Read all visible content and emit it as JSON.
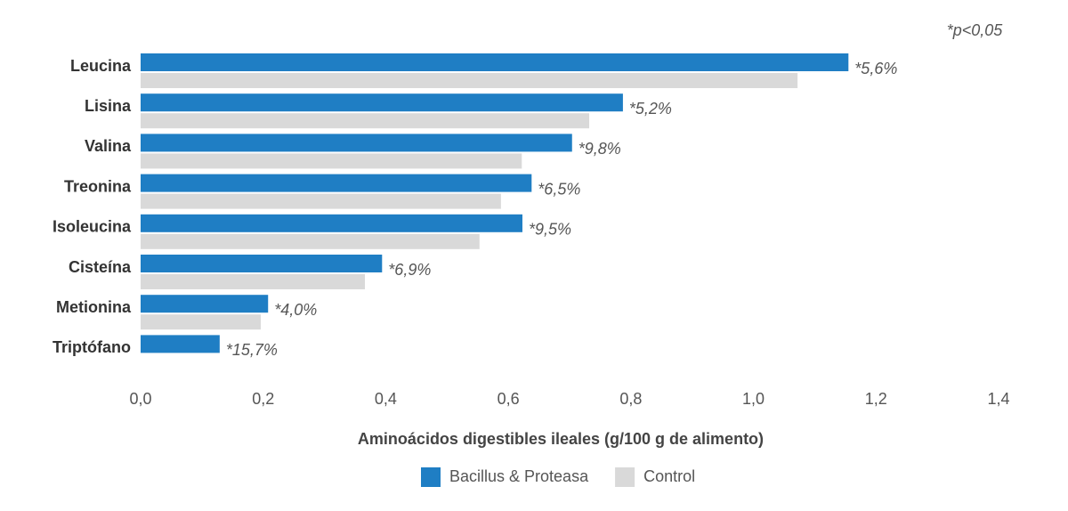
{
  "chart_data": {
    "type": "hbar",
    "note": "*p<0,05",
    "x_label": "Aminoácidos digestibles ileales (g/100 g de alimento)",
    "categories": [
      "Leucina",
      "Lisina",
      "Valina",
      "Treonina",
      "Isoleucina",
      "Cisteína",
      "Metionina",
      "Triptófano"
    ],
    "series": [
      {
        "name": "Bacillus & Proteasa",
        "color": "#1f7ec4",
        "values": [
          1.155,
          0.787,
          0.704,
          0.638,
          0.623,
          0.394,
          0.208,
          0.129
        ]
      },
      {
        "name": "Control",
        "color": "#d9d9d9",
        "values": [
          1.072,
          0.732,
          0.622,
          0.588,
          0.553,
          0.366,
          0.196,
          null
        ]
      }
    ],
    "annotations": [
      "*5,6%",
      "*5,2%",
      "*9,8%",
      "*6,5%",
      "*9,5%",
      "*6,9%",
      "*4,0%",
      "*15,7%"
    ],
    "xlim": [
      0,
      1.4
    ],
    "xticks": [
      {
        "value": 0,
        "label": "0,0"
      },
      {
        "value": 0.2,
        "label": "0,2"
      },
      {
        "value": 0.4,
        "label": "0,4"
      },
      {
        "value": 0.6,
        "label": "0,6"
      },
      {
        "value": 0.8,
        "label": "0,8"
      },
      {
        "value": 1.0,
        "label": "1,0"
      },
      {
        "value": 1.2,
        "label": "1,2"
      },
      {
        "value": 1.4,
        "label": "1,4"
      }
    ],
    "grid": false,
    "legend": "bottom"
  }
}
